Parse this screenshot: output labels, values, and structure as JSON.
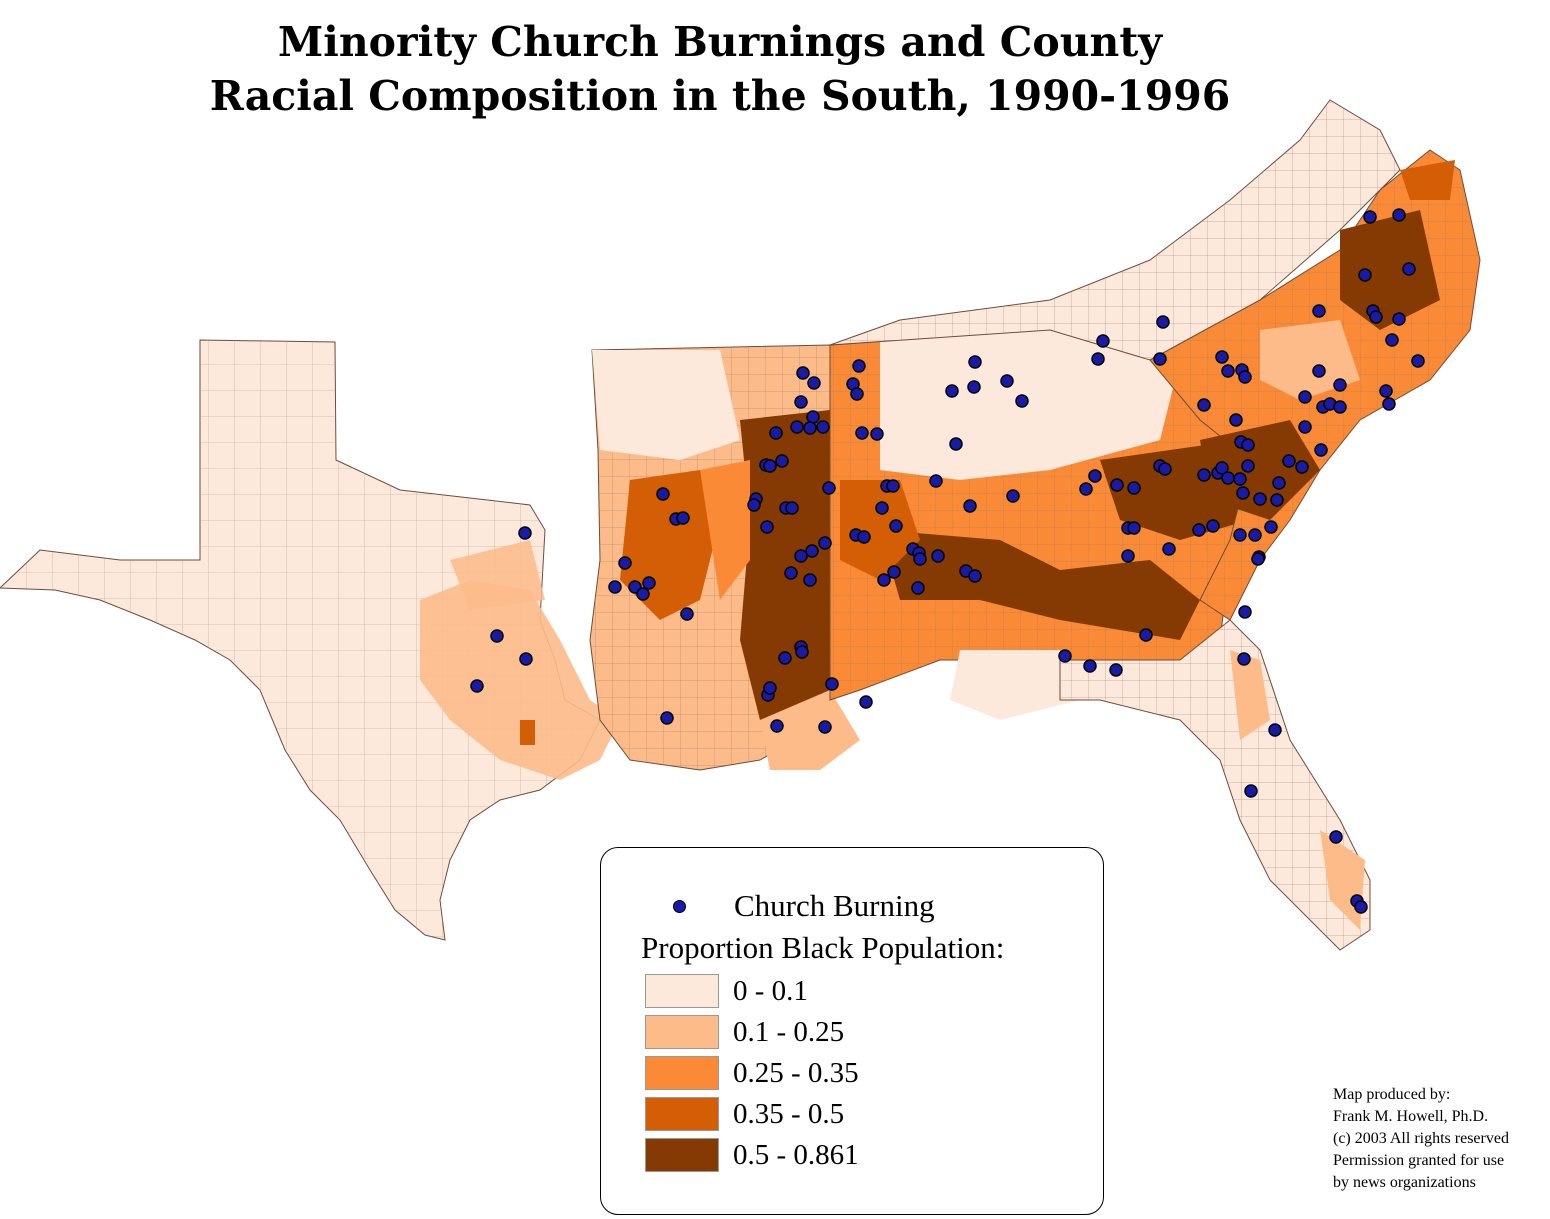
{
  "title": {
    "line1": "Minority Church Burnings and County",
    "line2": "Racial Composition in the South, 1990-1996"
  },
  "legend": {
    "marker_label": "Church Burning",
    "marker_color": "#1a1aa8",
    "heading": "Proportion Black Population:",
    "classes": [
      {
        "label": "0 - 0.1",
        "color": "#fde9dc"
      },
      {
        "label": "0.1 - 0.25",
        "color": "#fcbb89"
      },
      {
        "label": "0.25 - 0.35",
        "color": "#fb8a36"
      },
      {
        "label": "0.35 - 0.5",
        "color": "#d45e06"
      },
      {
        "label": "0.5 - 0.861",
        "color": "#843a02"
      }
    ]
  },
  "credit": {
    "line1": "Map produced by:",
    "line2": "Frank M. Howell, Ph.D.",
    "line3": "(c) 2003  All rights reserved",
    "line4": "Permission granted for use",
    "line5": "by news organizations"
  },
  "colors": {
    "county_border": "#8a6a55",
    "background": "#ffffff"
  }
}
